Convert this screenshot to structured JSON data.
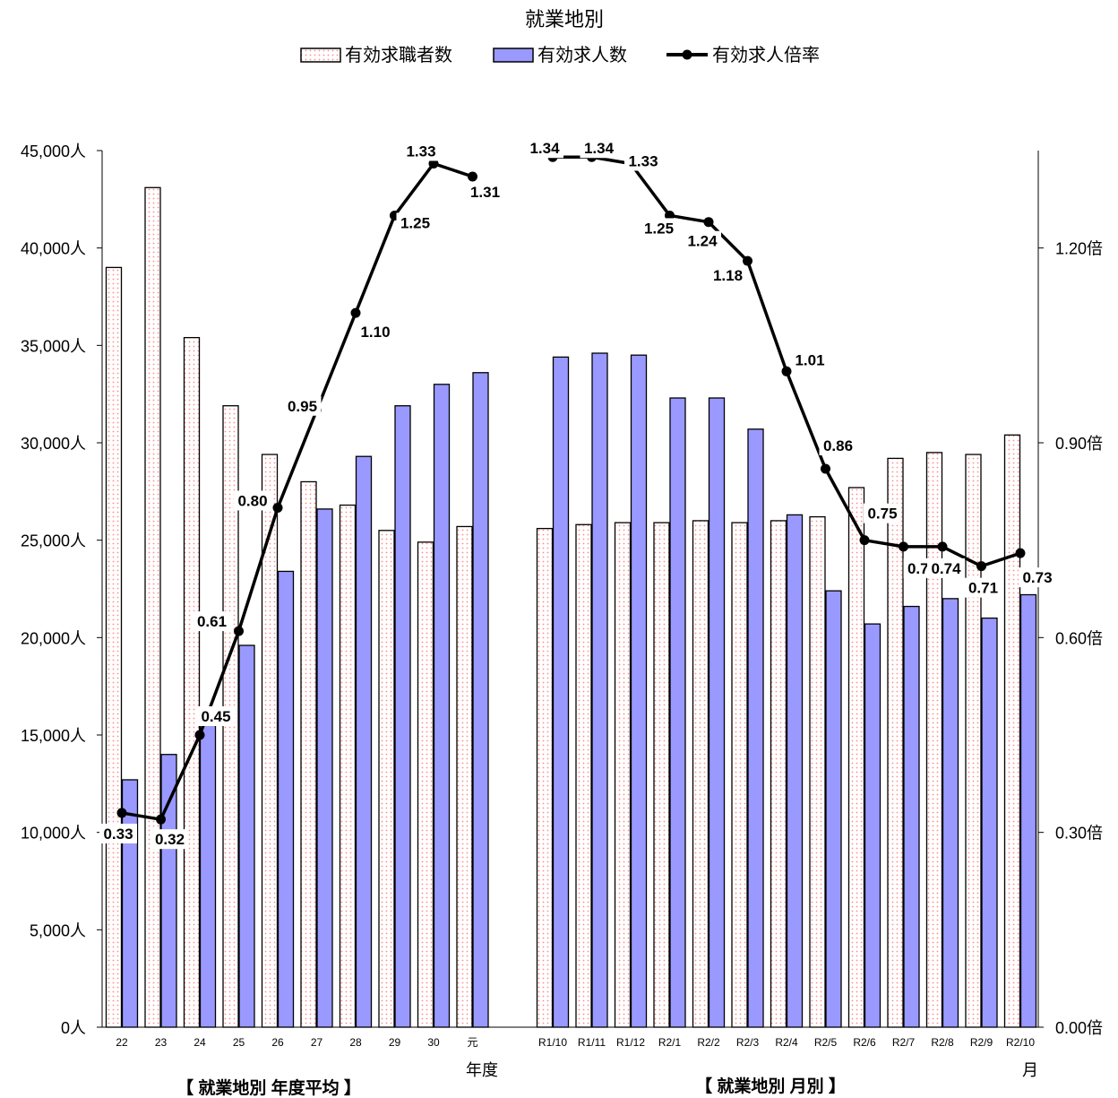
{
  "chart_data": {
    "type": "bar",
    "title": "就業地別",
    "categories": [
      "22",
      "23",
      "24",
      "25",
      "26",
      "27",
      "28",
      "29",
      "30",
      "元",
      "R1/10",
      "R1/11",
      "R1/12",
      "R2/1",
      "R2/2",
      "R2/3",
      "R2/4",
      "R2/5",
      "R2/6",
      "R2/7",
      "R2/8",
      "R2/9",
      "R2/10"
    ],
    "series": [
      {
        "name": "有効求職者数",
        "type": "bar",
        "axis": "left",
        "pattern": "dotted-pink",
        "values": [
          39000,
          43100,
          35400,
          31900,
          29400,
          28000,
          26800,
          25500,
          24900,
          25700,
          25600,
          25800,
          25900,
          25900,
          26000,
          25900,
          26000,
          26200,
          27700,
          29200,
          29500,
          29400,
          30400
        ]
      },
      {
        "name": "有効求人数",
        "type": "bar",
        "axis": "left",
        "color": "#9999ff",
        "values": [
          12700,
          14000,
          15900,
          19600,
          23400,
          26600,
          29300,
          31900,
          33000,
          33600,
          34400,
          34600,
          34500,
          32300,
          32300,
          30700,
          26300,
          22400,
          20700,
          21600,
          22000,
          21000,
          22200
        ]
      },
      {
        "name": "有効求人倍率",
        "type": "line",
        "axis": "right",
        "color": "#000000",
        "values": [
          0.33,
          0.32,
          0.45,
          0.61,
          0.8,
          0.95,
          1.1,
          1.25,
          1.33,
          1.31,
          null,
          1.34,
          1.33,
          1.25,
          1.24,
          1.18,
          1.01,
          0.86,
          0.75,
          0.74,
          0.74,
          0.71,
          0.73
        ],
        "labels": [
          "0.33",
          "0.32",
          "0.45",
          "0.61",
          "0.80",
          "0.95",
          "1.10",
          "1.25",
          "1.33",
          "1.31",
          "1.34",
          "1.34",
          "1.33",
          "1.25",
          "1.24",
          "1.18",
          "1.01",
          "0.86",
          "0.75",
          "0.74",
          "0.74",
          "0.71",
          "0.73"
        ],
        "label_points": [
          0,
          1,
          2,
          3,
          4,
          5,
          6,
          7,
          8,
          9,
          10,
          11,
          12,
          13,
          14,
          15,
          16,
          17,
          18,
          19,
          20,
          21,
          22
        ],
        "plotted_from_index": [
          0,
          10
        ]
      }
    ],
    "y_left": {
      "ylim": [
        0,
        45000
      ],
      "ticks": [
        0,
        5000,
        10000,
        15000,
        20000,
        25000,
        30000,
        35000,
        40000,
        45000
      ],
      "tick_labels": [
        "0人",
        "5,000人",
        "10,000人",
        "15,000人",
        "20,000人",
        "25,000人",
        "30,000人",
        "35,000人",
        "40,000人",
        "45,000人"
      ]
    },
    "y_right": {
      "ylim": [
        0,
        1.35
      ],
      "ticks": [
        0,
        0.3,
        0.6,
        0.9,
        1.2
      ],
      "tick_labels": [
        "0.00倍",
        "0.30倍",
        "0.60倍",
        "0.90倍",
        "1.20倍"
      ]
    },
    "x_group_units": [
      "年度",
      "月"
    ],
    "section_labels": [
      "【 就業地別 年度平均 】",
      "【 就業地別 月別 】"
    ],
    "legend_position": "top-center",
    "colors": {
      "job_seekers_fill": "#ffffff",
      "job_seekers_dots": "#ff9999",
      "job_offers_fill": "#9999ff",
      "ratio_line": "#000000"
    }
  }
}
